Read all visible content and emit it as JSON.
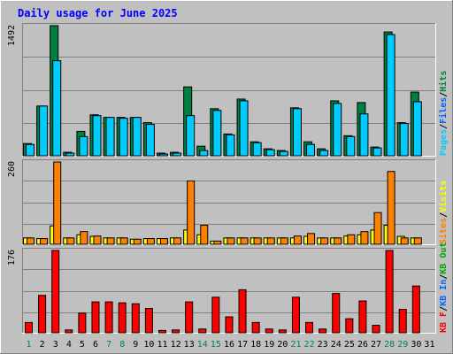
{
  "chart_data": [
    {
      "type": "bar",
      "title": "Daily usage for June 2025",
      "categories": [
        "1",
        "2",
        "3",
        "4",
        "5",
        "6",
        "7",
        "8",
        "9",
        "10",
        "11",
        "12",
        "13",
        "14",
        "15",
        "16",
        "17",
        "18",
        "19",
        "20",
        "21",
        "22",
        "23",
        "24",
        "25",
        "26",
        "27",
        "28",
        "29",
        "30",
        "31"
      ],
      "weekend_days": [
        "1",
        "7",
        "8",
        "14",
        "15",
        "21",
        "22",
        "28",
        "29"
      ],
      "ylim": [
        0,
        1492
      ],
      "max_label": "1492",
      "legend": {
        "parts": [
          "Pages",
          "/",
          "Files",
          "/",
          "Hits"
        ]
      },
      "series": [
        {
          "name": "Hits",
          "color": "#00805c",
          "values": [
            140,
            570,
            1492,
            40,
            280,
            470,
            440,
            440,
            440,
            380,
            30,
            40,
            790,
            110,
            540,
            250,
            650,
            160,
            80,
            60,
            550,
            160,
            80,
            630,
            230,
            610,
            100,
            1420,
            380,
            730,
            0
          ]
        },
        {
          "name": "Files",
          "color": "#00ccff",
          "values": [
            130,
            570,
            1090,
            30,
            220,
            460,
            440,
            430,
            440,
            360,
            20,
            30,
            460,
            60,
            520,
            240,
            630,
            150,
            70,
            50,
            540,
            130,
            60,
            600,
            220,
            480,
            90,
            1390,
            370,
            620,
            0
          ]
        },
        {
          "name": "Pages",
          "color": "#00ccff",
          "values": [
            0,
            0,
            0,
            0,
            0,
            0,
            0,
            0,
            0,
            0,
            0,
            0,
            0,
            0,
            0,
            0,
            0,
            0,
            0,
            0,
            0,
            0,
            0,
            0,
            0,
            0,
            0,
            0,
            0,
            0,
            0
          ]
        }
      ]
    },
    {
      "type": "bar",
      "ylim": [
        0,
        260
      ],
      "max_label": "260",
      "legend": {
        "parts": [
          "Sites",
          "/",
          "Visits"
        ]
      },
      "series": [
        {
          "name": "Visits",
          "color": "#ffff00",
          "values": [
            20,
            18,
            58,
            20,
            30,
            25,
            20,
            20,
            16,
            18,
            18,
            20,
            45,
            30,
            10,
            20,
            20,
            20,
            20,
            20,
            20,
            25,
            20,
            20,
            26,
            30,
            45,
            60,
            25,
            20,
            0
          ]
        },
        {
          "name": "Sites",
          "color": "#ff8000",
          "values": [
            20,
            18,
            260,
            20,
            40,
            26,
            20,
            20,
            16,
            18,
            18,
            20,
            200,
            60,
            10,
            20,
            20,
            20,
            20,
            20,
            26,
            34,
            20,
            20,
            30,
            40,
            100,
            230,
            20,
            20,
            0
          ]
        }
      ]
    },
    {
      "type": "bar",
      "ylim": [
        0,
        176
      ],
      "max_label": "176",
      "legend": {
        "parts": [
          "KB F",
          "/",
          "KB In",
          "/",
          "KB Out"
        ]
      },
      "series": [
        {
          "name": "KB F",
          "color": "#ff0000",
          "values": [
            22,
            80,
            176,
            6,
            42,
            66,
            66,
            64,
            62,
            52,
            5,
            6,
            66,
            8,
            76,
            34,
            92,
            22,
            8,
            6,
            76,
            22,
            8,
            84,
            30,
            68,
            16,
            176,
            50,
            100,
            0
          ]
        },
        {
          "name": "KB In",
          "color": "#0000ff",
          "values": [
            0,
            0,
            0,
            0,
            0,
            0,
            0,
            0,
            0,
            0,
            0,
            0,
            0,
            0,
            0,
            0,
            0,
            0,
            0,
            0,
            0,
            0,
            0,
            0,
            0,
            0,
            0,
            0,
            0,
            0,
            0
          ]
        },
        {
          "name": "KB Out",
          "color": "#00ff00",
          "values": [
            0,
            0,
            0,
            0,
            0,
            0,
            0,
            0,
            0,
            0,
            0,
            0,
            0,
            0,
            0,
            0,
            0,
            0,
            0,
            0,
            0,
            0,
            0,
            0,
            0,
            0,
            0,
            0,
            0,
            0,
            0
          ]
        }
      ]
    }
  ],
  "colors": {
    "background": "#c0c0c0",
    "title": "#0000ff",
    "weekend_label": "#00805c",
    "weekday_label": "#000000",
    "grid": "#808080",
    "bar_outline": "#000000",
    "pages": "#00ccff",
    "files": "#0066ff",
    "hits": "#008040",
    "sites": "#ff8000",
    "visits": "#ffff00",
    "kbf": "#ff0000",
    "kbin": "#0066ff",
    "kbout": "#00aa00",
    "slash": "#000000"
  }
}
